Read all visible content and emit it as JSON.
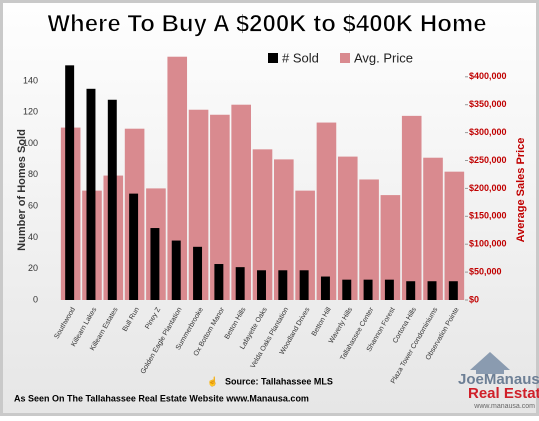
{
  "chart_data": {
    "type": "bar",
    "title": "Where To Buy A $200K to $400K Home",
    "categories": [
      "Southwood",
      "Killearn Lakes",
      "Killearn Estates",
      "Bull Run",
      "Piney Z",
      "Golden Eagle Plantation",
      "Summerbrooke",
      "Ox Bottom Manor",
      "Betton Hills",
      "Lafayette Oaks",
      "Velda Oaks Plantation",
      "Woodland Drives",
      "Betton Hill",
      "Waverly Hills",
      "Tallahassee Center",
      "Shannon Forest",
      "Cortona Hills",
      "Plaza Tower Condominiums",
      "Observation Pointe"
    ],
    "series": [
      {
        "name": "# Sold",
        "color": "#000000",
        "values": [
          150,
          135,
          128,
          68,
          46,
          38,
          34,
          23,
          21,
          19,
          19,
          19,
          15,
          13,
          13,
          13,
          12,
          12,
          12
        ]
      },
      {
        "name": "Avg. Price",
        "color": "#d98a8f",
        "axis": "y2",
        "values": [
          309000,
          196000,
          223000,
          307000,
          200000,
          436000,
          341000,
          332000,
          350000,
          270000,
          252000,
          196000,
          318000,
          257000,
          216000,
          188000,
          330000,
          255000,
          230000
        ]
      }
    ],
    "ylabel": "Number of Homes Sold",
    "y2label": "Average Sales Price",
    "ylim": [
      0,
      163
    ],
    "yticks": [
      0,
      20,
      40,
      60,
      80,
      100,
      120,
      140
    ],
    "y2lim": [
      0,
      457000
    ],
    "y2ticks": [
      {
        "value": 0,
        "label": "$0"
      },
      {
        "value": 50000,
        "label": "$50,000"
      },
      {
        "value": 100000,
        "label": "$100,000"
      },
      {
        "value": 150000,
        "label": "$150,000"
      },
      {
        "value": 200000,
        "label": "$200,000"
      },
      {
        "value": 250000,
        "label": "$250,000"
      },
      {
        "value": 300000,
        "label": "$300,000"
      },
      {
        "value": 350000,
        "label": "$350,000"
      },
      {
        "value": 400000,
        "label": "$400,000"
      }
    ],
    "source": "Source: Tallahassee MLS",
    "footer": "As Seen On The Tallahassee Real Estate Website www.Manausa.com",
    "logo": {
      "name": "JoeManausa",
      "tagline": "Real Estate",
      "url": "www.manausa.com"
    }
  }
}
